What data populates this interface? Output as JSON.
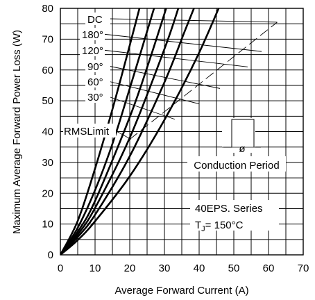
{
  "chart_data": {
    "type": "line",
    "title": "",
    "xlabel": "Average Forward Current (A)",
    "ylabel": "Maximum Average Forward Power Loss (W)",
    "xlim": [
      0,
      70
    ],
    "ylim": [
      0,
      80
    ],
    "xticks": [
      "0",
      "10",
      "20",
      "30",
      "40",
      "50",
      "60",
      "70"
    ],
    "yticks": [
      "0",
      "10",
      "20",
      "30",
      "40",
      "50",
      "60",
      "70",
      "80"
    ],
    "grid": true,
    "series": [
      {
        "name": "DC",
        "points": [
          [
            0,
            0
          ],
          [
            5,
            4.8
          ],
          [
            10,
            10.9
          ],
          [
            20,
            25.5
          ],
          [
            30,
            43.8
          ],
          [
            40,
            65.6
          ],
          [
            49,
            89
          ]
        ]
      },
      {
        "name": "180°",
        "points": [
          [
            0,
            0
          ],
          [
            5,
            5.8
          ],
          [
            10,
            13
          ],
          [
            20,
            32
          ],
          [
            30,
            56
          ],
          [
            36,
            73
          ],
          [
            38.5,
            80
          ]
        ]
      },
      {
        "name": "120°",
        "points": [
          [
            0,
            0
          ],
          [
            5,
            6.6
          ],
          [
            10,
            15.2
          ],
          [
            20,
            38
          ],
          [
            30,
            66.8
          ],
          [
            34,
            80
          ]
        ]
      },
      {
        "name": "90°",
        "points": [
          [
            0,
            0
          ],
          [
            5,
            7.5
          ],
          [
            10,
            17.5
          ],
          [
            20,
            44.7
          ],
          [
            25.5,
            62.5
          ],
          [
            30.5,
            80
          ]
        ]
      },
      {
        "name": "60°",
        "points": [
          [
            0,
            0
          ],
          [
            5,
            8.8
          ],
          [
            10,
            21
          ],
          [
            15,
            36
          ],
          [
            20,
            54
          ],
          [
            27,
            80
          ]
        ]
      },
      {
        "name": "30°",
        "points": [
          [
            0,
            0
          ],
          [
            5,
            11
          ],
          [
            10,
            28
          ],
          [
            15,
            47.2
          ],
          [
            20,
            68
          ],
          [
            22.8,
            80
          ]
        ]
      }
    ],
    "rms_limit": {
      "label": "RMSLimit",
      "points": [
        [
          20,
          37.5
        ],
        [
          62.5,
          75.5
        ]
      ]
    },
    "annotations": {
      "inset_label": "Conduction Period",
      "inset_symbol": "ø",
      "device_line1": "40EPS. Series",
      "device_line2_main": "T",
      "device_line2_sub": "J",
      "device_line2_rest": "= 150°C"
    }
  }
}
